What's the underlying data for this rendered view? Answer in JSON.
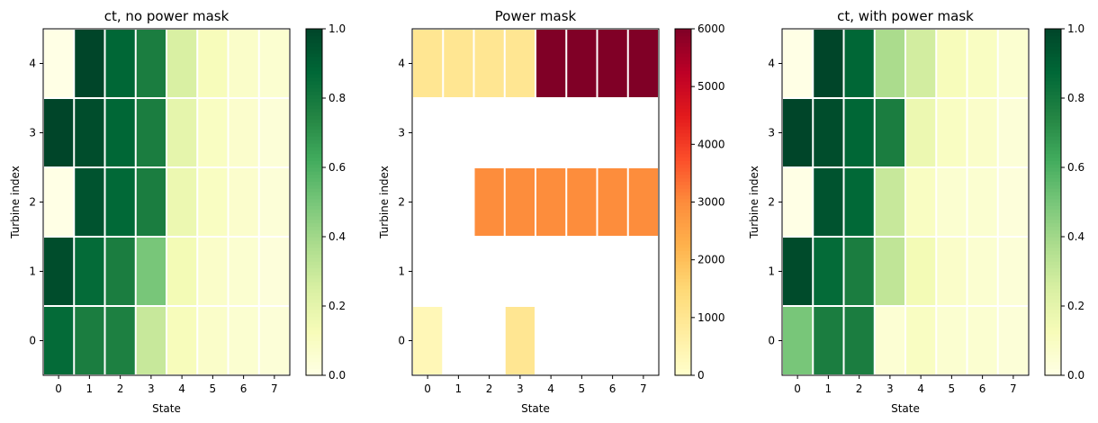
{
  "chart_data": [
    {
      "type": "heatmap",
      "title": "ct, no power mask",
      "xlabel": "State",
      "ylabel": "Turbine index",
      "x_ticks": [
        "0",
        "1",
        "2",
        "3",
        "4",
        "5",
        "6",
        "7"
      ],
      "y_ticks": [
        "0",
        "1",
        "2",
        "3",
        "4"
      ],
      "colormap": "YlGn",
      "clim": [
        0,
        1
      ],
      "colorbar_ticks": [
        "0.0",
        "0.2",
        "0.4",
        "0.6",
        "0.8",
        "1.0"
      ],
      "colorbar_values": [
        0,
        0.2,
        0.4,
        0.6,
        0.8,
        1.0
      ],
      "values_by_turbine": [
        [
          0.86,
          0.78,
          0.77,
          0.3,
          0.12,
          0.08,
          0.06,
          0.04
        ],
        [
          0.97,
          0.86,
          0.78,
          0.5,
          0.14,
          0.08,
          0.06,
          0.03
        ],
        [
          0.0,
          0.95,
          0.87,
          0.78,
          0.17,
          0.1,
          0.07,
          0.04
        ],
        [
          1.0,
          0.97,
          0.88,
          0.78,
          0.2,
          0.1,
          0.07,
          0.04
        ],
        [
          0.0,
          1.0,
          0.88,
          0.78,
          0.25,
          0.12,
          0.08,
          0.06
        ]
      ]
    },
    {
      "type": "heatmap",
      "title": "Power mask",
      "xlabel": "State",
      "ylabel": "Turbine index",
      "x_ticks": [
        "0",
        "1",
        "2",
        "3",
        "4",
        "5",
        "6",
        "7"
      ],
      "y_ticks": [
        "0",
        "1",
        "2",
        "3",
        "4"
      ],
      "colormap": "YlOrRd",
      "clim": [
        0,
        6000
      ],
      "colorbar_ticks": [
        "0",
        "1000",
        "2000",
        "3000",
        "4000",
        "5000",
        "6000"
      ],
      "colorbar_values": [
        0,
        1000,
        2000,
        3000,
        4000,
        5000,
        6000
      ],
      "values_by_turbine": [
        [
          350,
          null,
          null,
          1000,
          null,
          null,
          null,
          null
        ],
        [
          null,
          null,
          null,
          null,
          null,
          null,
          null,
          null
        ],
        [
          null,
          null,
          3000,
          3000,
          3000,
          3000,
          3000,
          3000
        ],
        [
          null,
          null,
          null,
          null,
          null,
          null,
          null,
          null
        ],
        [
          1000,
          1000,
          1000,
          1000,
          6000,
          6000,
          6000,
          6000
        ]
      ]
    },
    {
      "type": "heatmap",
      "title": "ct, with power mask",
      "xlabel": "State",
      "ylabel": "Turbine index",
      "x_ticks": [
        "0",
        "1",
        "2",
        "3",
        "4",
        "5",
        "6",
        "7"
      ],
      "y_ticks": [
        "0",
        "1",
        "2",
        "3",
        "4"
      ],
      "colormap": "YlGn",
      "clim": [
        0,
        1
      ],
      "colorbar_ticks": [
        "0.0",
        "0.2",
        "0.4",
        "0.6",
        "0.8",
        "1.0"
      ],
      "colorbar_values": [
        0,
        0.2,
        0.4,
        0.6,
        0.8,
        1.0
      ],
      "values_by_turbine": [
        [
          0.5,
          0.78,
          0.78,
          0.05,
          0.1,
          0.06,
          0.06,
          0.04
        ],
        [
          0.98,
          0.86,
          0.78,
          0.32,
          0.14,
          0.08,
          0.06,
          0.04
        ],
        [
          0.0,
          0.95,
          0.87,
          0.3,
          0.1,
          0.06,
          0.06,
          0.03
        ],
        [
          1.0,
          0.97,
          0.88,
          0.78,
          0.17,
          0.1,
          0.08,
          0.04
        ],
        [
          0.0,
          1.0,
          0.88,
          0.38,
          0.27,
          0.12,
          0.1,
          0.06
        ]
      ]
    }
  ],
  "colormaps": {
    "YlGn": [
      "#ffffe5",
      "#f7fcb9",
      "#d9f0a3",
      "#addd8e",
      "#78c679",
      "#41ab5d",
      "#238443",
      "#006837",
      "#004529"
    ],
    "YlOrRd": [
      "#ffffcc",
      "#ffeda0",
      "#fed976",
      "#feb24c",
      "#fd8d3c",
      "#fc4e2a",
      "#e31a1c",
      "#bd0026",
      "#800026"
    ]
  }
}
